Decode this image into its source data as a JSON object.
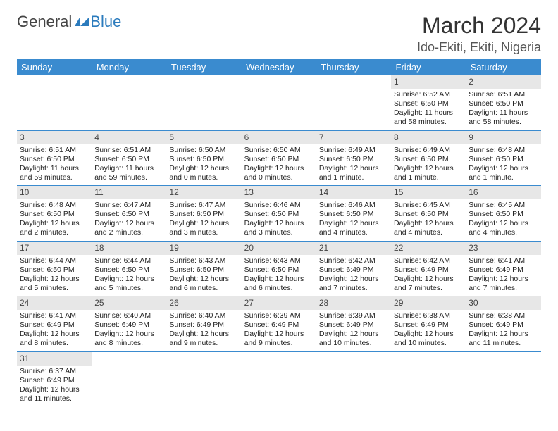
{
  "logo": {
    "part1": "General",
    "part2": "Blue"
  },
  "title": "March 2024",
  "location": "Ido-Ekiti, Ekiti, Nigeria",
  "colors": {
    "header_bg": "#3a8bcf",
    "header_fg": "#ffffff",
    "rule": "#3a8bcf",
    "daynum_bg": "#e7e7e7",
    "logo_accent": "#2b7bbd"
  },
  "weekdays": [
    "Sunday",
    "Monday",
    "Tuesday",
    "Wednesday",
    "Thursday",
    "Friday",
    "Saturday"
  ],
  "weeks": [
    [
      null,
      null,
      null,
      null,
      null,
      {
        "n": "1",
        "sunrise": "Sunrise: 6:52 AM",
        "sunset": "Sunset: 6:50 PM",
        "daylight": "Daylight: 11 hours and 58 minutes."
      },
      {
        "n": "2",
        "sunrise": "Sunrise: 6:51 AM",
        "sunset": "Sunset: 6:50 PM",
        "daylight": "Daylight: 11 hours and 58 minutes."
      }
    ],
    [
      {
        "n": "3",
        "sunrise": "Sunrise: 6:51 AM",
        "sunset": "Sunset: 6:50 PM",
        "daylight": "Daylight: 11 hours and 59 minutes."
      },
      {
        "n": "4",
        "sunrise": "Sunrise: 6:51 AM",
        "sunset": "Sunset: 6:50 PM",
        "daylight": "Daylight: 11 hours and 59 minutes."
      },
      {
        "n": "5",
        "sunrise": "Sunrise: 6:50 AM",
        "sunset": "Sunset: 6:50 PM",
        "daylight": "Daylight: 12 hours and 0 minutes."
      },
      {
        "n": "6",
        "sunrise": "Sunrise: 6:50 AM",
        "sunset": "Sunset: 6:50 PM",
        "daylight": "Daylight: 12 hours and 0 minutes."
      },
      {
        "n": "7",
        "sunrise": "Sunrise: 6:49 AM",
        "sunset": "Sunset: 6:50 PM",
        "daylight": "Daylight: 12 hours and 1 minute."
      },
      {
        "n": "8",
        "sunrise": "Sunrise: 6:49 AM",
        "sunset": "Sunset: 6:50 PM",
        "daylight": "Daylight: 12 hours and 1 minute."
      },
      {
        "n": "9",
        "sunrise": "Sunrise: 6:48 AM",
        "sunset": "Sunset: 6:50 PM",
        "daylight": "Daylight: 12 hours and 1 minute."
      }
    ],
    [
      {
        "n": "10",
        "sunrise": "Sunrise: 6:48 AM",
        "sunset": "Sunset: 6:50 PM",
        "daylight": "Daylight: 12 hours and 2 minutes."
      },
      {
        "n": "11",
        "sunrise": "Sunrise: 6:47 AM",
        "sunset": "Sunset: 6:50 PM",
        "daylight": "Daylight: 12 hours and 2 minutes."
      },
      {
        "n": "12",
        "sunrise": "Sunrise: 6:47 AM",
        "sunset": "Sunset: 6:50 PM",
        "daylight": "Daylight: 12 hours and 3 minutes."
      },
      {
        "n": "13",
        "sunrise": "Sunrise: 6:46 AM",
        "sunset": "Sunset: 6:50 PM",
        "daylight": "Daylight: 12 hours and 3 minutes."
      },
      {
        "n": "14",
        "sunrise": "Sunrise: 6:46 AM",
        "sunset": "Sunset: 6:50 PM",
        "daylight": "Daylight: 12 hours and 4 minutes."
      },
      {
        "n": "15",
        "sunrise": "Sunrise: 6:45 AM",
        "sunset": "Sunset: 6:50 PM",
        "daylight": "Daylight: 12 hours and 4 minutes."
      },
      {
        "n": "16",
        "sunrise": "Sunrise: 6:45 AM",
        "sunset": "Sunset: 6:50 PM",
        "daylight": "Daylight: 12 hours and 4 minutes."
      }
    ],
    [
      {
        "n": "17",
        "sunrise": "Sunrise: 6:44 AM",
        "sunset": "Sunset: 6:50 PM",
        "daylight": "Daylight: 12 hours and 5 minutes."
      },
      {
        "n": "18",
        "sunrise": "Sunrise: 6:44 AM",
        "sunset": "Sunset: 6:50 PM",
        "daylight": "Daylight: 12 hours and 5 minutes."
      },
      {
        "n": "19",
        "sunrise": "Sunrise: 6:43 AM",
        "sunset": "Sunset: 6:50 PM",
        "daylight": "Daylight: 12 hours and 6 minutes."
      },
      {
        "n": "20",
        "sunrise": "Sunrise: 6:43 AM",
        "sunset": "Sunset: 6:50 PM",
        "daylight": "Daylight: 12 hours and 6 minutes."
      },
      {
        "n": "21",
        "sunrise": "Sunrise: 6:42 AM",
        "sunset": "Sunset: 6:49 PM",
        "daylight": "Daylight: 12 hours and 7 minutes."
      },
      {
        "n": "22",
        "sunrise": "Sunrise: 6:42 AM",
        "sunset": "Sunset: 6:49 PM",
        "daylight": "Daylight: 12 hours and 7 minutes."
      },
      {
        "n": "23",
        "sunrise": "Sunrise: 6:41 AM",
        "sunset": "Sunset: 6:49 PM",
        "daylight": "Daylight: 12 hours and 7 minutes."
      }
    ],
    [
      {
        "n": "24",
        "sunrise": "Sunrise: 6:41 AM",
        "sunset": "Sunset: 6:49 PM",
        "daylight": "Daylight: 12 hours and 8 minutes."
      },
      {
        "n": "25",
        "sunrise": "Sunrise: 6:40 AM",
        "sunset": "Sunset: 6:49 PM",
        "daylight": "Daylight: 12 hours and 8 minutes."
      },
      {
        "n": "26",
        "sunrise": "Sunrise: 6:40 AM",
        "sunset": "Sunset: 6:49 PM",
        "daylight": "Daylight: 12 hours and 9 minutes."
      },
      {
        "n": "27",
        "sunrise": "Sunrise: 6:39 AM",
        "sunset": "Sunset: 6:49 PM",
        "daylight": "Daylight: 12 hours and 9 minutes."
      },
      {
        "n": "28",
        "sunrise": "Sunrise: 6:39 AM",
        "sunset": "Sunset: 6:49 PM",
        "daylight": "Daylight: 12 hours and 10 minutes."
      },
      {
        "n": "29",
        "sunrise": "Sunrise: 6:38 AM",
        "sunset": "Sunset: 6:49 PM",
        "daylight": "Daylight: 12 hours and 10 minutes."
      },
      {
        "n": "30",
        "sunrise": "Sunrise: 6:38 AM",
        "sunset": "Sunset: 6:49 PM",
        "daylight": "Daylight: 12 hours and 11 minutes."
      }
    ],
    [
      {
        "n": "31",
        "sunrise": "Sunrise: 6:37 AM",
        "sunset": "Sunset: 6:49 PM",
        "daylight": "Daylight: 12 hours and 11 minutes."
      },
      null,
      null,
      null,
      null,
      null,
      null
    ]
  ]
}
